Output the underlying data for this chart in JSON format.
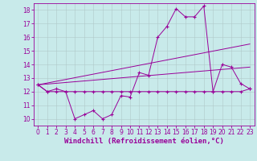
{
  "xlabel": "Windchill (Refroidissement éolien,°C)",
  "bg_color": "#c8eaea",
  "line_color": "#990099",
  "xlim": [
    -0.5,
    23.5
  ],
  "ylim": [
    9.5,
    18.5
  ],
  "xticks": [
    0,
    1,
    2,
    3,
    4,
    5,
    6,
    7,
    8,
    9,
    10,
    11,
    12,
    13,
    14,
    15,
    16,
    17,
    18,
    19,
    20,
    21,
    22,
    23
  ],
  "yticks": [
    10,
    11,
    12,
    13,
    14,
    15,
    16,
    17,
    18
  ],
  "series1_x": [
    0,
    1,
    2,
    3,
    4,
    5,
    6,
    7,
    8,
    9,
    10,
    11,
    12,
    13,
    14,
    15,
    16,
    17,
    18,
    19,
    20,
    21,
    22,
    23
  ],
  "series1_y": [
    12.5,
    12.0,
    12.0,
    12.0,
    10.0,
    10.3,
    10.6,
    10.0,
    10.3,
    11.7,
    11.6,
    13.4,
    13.2,
    16.0,
    16.8,
    18.1,
    17.5,
    17.5,
    18.3,
    12.0,
    14.0,
    13.8,
    12.6,
    12.2
  ],
  "series2_x": [
    0,
    1,
    2,
    3,
    4,
    5,
    6,
    7,
    8,
    9,
    10,
    11,
    12,
    13,
    14,
    15,
    16,
    17,
    18,
    19,
    20,
    21,
    22,
    23
  ],
  "series2_y": [
    12.5,
    12.0,
    12.2,
    12.0,
    12.0,
    12.0,
    12.0,
    12.0,
    12.0,
    12.0,
    12.0,
    12.0,
    12.0,
    12.0,
    12.0,
    12.0,
    12.0,
    12.0,
    12.0,
    12.0,
    12.0,
    12.0,
    12.0,
    12.2
  ],
  "series3_x": [
    0,
    23
  ],
  "series3_y": [
    12.5,
    15.5
  ],
  "series4_x": [
    0,
    23
  ],
  "series4_y": [
    12.5,
    13.8
  ],
  "grid_color": "#b0c8c8",
  "label_fontsize": 6.5,
  "tick_fontsize": 5.5
}
